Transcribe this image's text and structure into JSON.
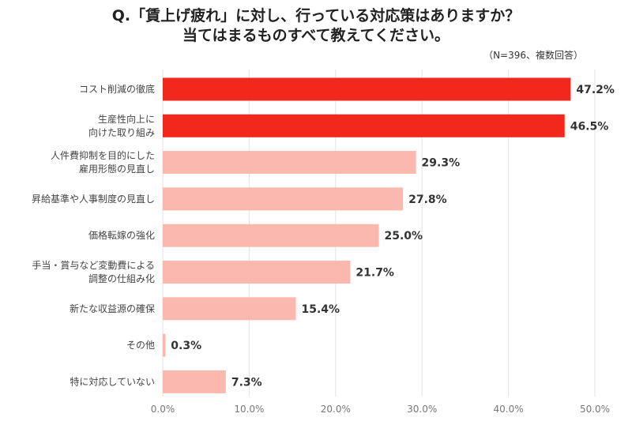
{
  "chart_data": {
    "type": "bar",
    "orientation": "horizontal",
    "title": [
      "Q.「賃上げ疲れ」に対し、行っている対応策はありますか？",
      "当てはまるものすべて教えてください。"
    ],
    "subtitle": "（N=396、複数回答）",
    "categories": [
      "コスト削減の徹底",
      "生産性向上に\n向けた取り組み",
      "人件費抑制を目的にした\n雇用形態の見直し",
      "昇給基準や人事制度の見直し",
      "価格転嫁の強化",
      "手当・賞与など変動費による\n調整の仕組み化",
      "新たな収益源の確保",
      "その他",
      "特に対応していない"
    ],
    "values": [
      47.2,
      46.5,
      29.3,
      27.8,
      25.0,
      21.7,
      15.4,
      0.3,
      7.3
    ],
    "data_labels": [
      "47.2%",
      "46.5%",
      "29.3%",
      "27.8%",
      "25.0%",
      "21.7%",
      "15.4%",
      "0.3%",
      "7.3%"
    ],
    "highlighted": [
      true,
      true,
      false,
      false,
      false,
      false,
      false,
      false,
      false
    ],
    "xlim": [
      0,
      50
    ],
    "xticks": [
      "0.0%",
      "10.0%",
      "20.0%",
      "30.0%",
      "40.0%",
      "50.0%"
    ],
    "grid": "vertical",
    "colors": {
      "highlight": "#f2281c",
      "normal": "#fbb8af",
      "grid": "#e3e3e3"
    }
  }
}
